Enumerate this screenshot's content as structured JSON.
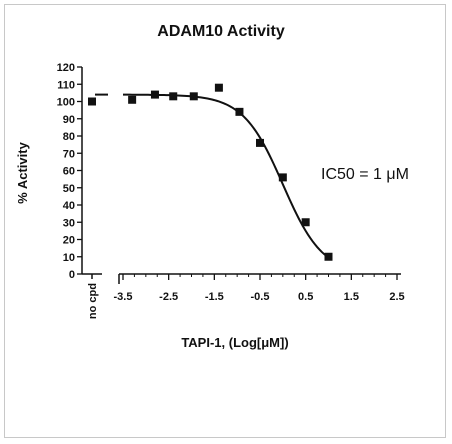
{
  "chart_data": {
    "type": "scatter",
    "title": "ADAM10 Activity",
    "xlabel": "TAPI-1, (Log[μM])",
    "ylabel": "% Activity",
    "annotation": "IC50 = 1 μM",
    "ylim": [
      0,
      120
    ],
    "xlim": [
      -3.5,
      2.5
    ],
    "yticks": [
      "0",
      "10",
      "20",
      "30",
      "40",
      "50",
      "60",
      "70",
      "80",
      "90",
      "100",
      "110",
      "120"
    ],
    "xticks": [
      "-3.5",
      "-2.5",
      "-1.5",
      "-0.5",
      "0.5",
      "1.5",
      "2.5"
    ],
    "control": {
      "label": "no cpd",
      "value": 100,
      "baseline": 104
    },
    "series": [
      {
        "x": [
          -3.3,
          -2.8,
          -2.4,
          -1.95,
          -1.4,
          -0.95,
          -0.5,
          0.0,
          0.5,
          1.0
        ],
        "y": [
          101,
          104,
          103,
          103,
          108,
          94,
          76,
          56,
          30,
          10
        ]
      }
    ],
    "fit": {
      "type": "sigmoid",
      "top": 104,
      "bottom": 0,
      "log_ic50": 0.0,
      "hill": 1.0,
      "x_range": [
        -3.5,
        1.0
      ]
    },
    "grid": false,
    "colors": {
      "marker": "#111111",
      "line": "#111111",
      "text": "#111111"
    }
  }
}
